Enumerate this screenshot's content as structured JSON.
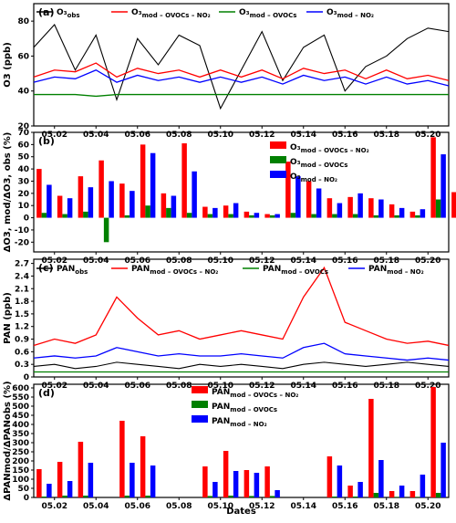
{
  "xaxis": {
    "label": "Dates",
    "start": "05.01",
    "end": "05.21",
    "ticks": [
      "05.02",
      "05.04",
      "05.06",
      "05.08",
      "05.10",
      "05.12",
      "05.14",
      "05.16",
      "05.18",
      "05.20"
    ]
  },
  "colors": {
    "obs": "#000000",
    "mod_ovocs_no2": "#ff0000",
    "mod_ovocs": "#008000",
    "mod_no2": "#0000ff"
  },
  "chart_data": [
    {
      "panel": "(a)",
      "type": "line",
      "ylabel": "O3 (ppb)",
      "ylim": [
        20,
        90
      ],
      "yticks": [
        20,
        40,
        60,
        80
      ],
      "legend": "top",
      "series": [
        {
          "key": "obs",
          "name": "O3, obs",
          "x": [
            "05.01",
            "05.02",
            "05.03",
            "05.04",
            "05.05",
            "05.06",
            "05.07",
            "05.08",
            "05.09",
            "05.10",
            "05.11",
            "05.12",
            "05.13",
            "05.14",
            "05.15",
            "05.16",
            "05.17",
            "05.18",
            "05.19",
            "05.20",
            "05.21"
          ],
          "values": [
            65,
            78,
            52,
            72,
            35,
            70,
            55,
            72,
            66,
            30,
            52,
            74,
            46,
            65,
            72,
            40,
            54,
            60,
            70,
            76,
            74
          ]
        },
        {
          "key": "mod_ovocs_no2",
          "name": "O3, mod – OVOCs – NO2",
          "x": [
            "05.01",
            "05.02",
            "05.03",
            "05.04",
            "05.05",
            "05.06",
            "05.07",
            "05.08",
            "05.09",
            "05.10",
            "05.11",
            "05.12",
            "05.13",
            "05.14",
            "05.15",
            "05.16",
            "05.17",
            "05.18",
            "05.19",
            "05.20",
            "05.21"
          ],
          "values": [
            48,
            52,
            51,
            56,
            48,
            53,
            50,
            52,
            48,
            52,
            48,
            52,
            47,
            53,
            50,
            52,
            47,
            52,
            47,
            49,
            46
          ]
        },
        {
          "key": "mod_ovocs",
          "name": "O3, mod – OVOCs",
          "x": [
            "05.01",
            "05.02",
            "05.03",
            "05.04",
            "05.05",
            "05.06",
            "05.07",
            "05.08",
            "05.09",
            "05.10",
            "05.11",
            "05.12",
            "05.13",
            "05.14",
            "05.15",
            "05.16",
            "05.17",
            "05.18",
            "05.19",
            "05.20",
            "05.21"
          ],
          "values": [
            38,
            38,
            38,
            37,
            38,
            38,
            38,
            38,
            38,
            38,
            38,
            38,
            38,
            38,
            38,
            38,
            38,
            38,
            38,
            38,
            38
          ]
        },
        {
          "key": "mod_no2",
          "name": "O3, mod – NO2",
          "x": [
            "05.01",
            "05.02",
            "05.03",
            "05.04",
            "05.05",
            "05.06",
            "05.07",
            "05.08",
            "05.09",
            "05.10",
            "05.11",
            "05.12",
            "05.13",
            "05.14",
            "05.15",
            "05.16",
            "05.17",
            "05.18",
            "05.19",
            "05.20",
            "05.21"
          ],
          "values": [
            45,
            48,
            47,
            52,
            45,
            49,
            46,
            48,
            45,
            48,
            45,
            48,
            44,
            49,
            46,
            48,
            44,
            48,
            44,
            46,
            43
          ]
        }
      ]
    },
    {
      "panel": "(b)",
      "type": "bar",
      "ylabel": "ΔO3, mod/ΔO3, obs (%)",
      "ylim": [
        -28,
        70
      ],
      "yticks": [
        -20,
        -10,
        0,
        10,
        20,
        30,
        40,
        50,
        60,
        70
      ],
      "legend": "top-right",
      "categories": [
        "05.01",
        "05.02",
        "05.03",
        "05.04",
        "05.05",
        "05.06",
        "05.07",
        "05.08",
        "05.09",
        "05.10",
        "05.11",
        "05.12",
        "05.13",
        "05.14",
        "05.15",
        "05.16",
        "05.17",
        "05.18",
        "05.19",
        "05.20",
        "05.21"
      ],
      "series": [
        {
          "key": "mod_ovocs_no2",
          "name": "O3, mod – OVOCs – NO2",
          "values": [
            40,
            18,
            34,
            47,
            28,
            60,
            20,
            61,
            9,
            10,
            5,
            3,
            46,
            30,
            16,
            17,
            16,
            11,
            5,
            66,
            21
          ]
        },
        {
          "key": "mod_ovocs",
          "name": "O3, mod – OVOCs",
          "values": [
            4,
            3,
            5,
            -20,
            2,
            10,
            8,
            4,
            3,
            3,
            2,
            2,
            4,
            3,
            3,
            3,
            2,
            2,
            2,
            15,
            4
          ]
        },
        {
          "key": "mod_no2",
          "name": "O3, mod – NO2",
          "values": [
            27,
            16,
            25,
            30,
            22,
            53,
            18,
            38,
            8,
            12,
            4,
            3,
            34,
            24,
            12,
            20,
            15,
            8,
            7,
            52,
            16
          ]
        }
      ]
    },
    {
      "panel": "(c)",
      "type": "line",
      "ylabel": "PAN (ppb)",
      "ylim": [
        0,
        2.8
      ],
      "yticks": [
        0,
        0.3,
        0.6,
        0.9,
        1.2,
        1.5,
        1.8,
        2.1,
        2.4,
        2.7
      ],
      "legend": "top",
      "series": [
        {
          "key": "obs",
          "name": "PANobs",
          "x": [
            "05.01",
            "05.02",
            "05.03",
            "05.04",
            "05.05",
            "05.06",
            "05.07",
            "05.08",
            "05.09",
            "05.10",
            "05.11",
            "05.12",
            "05.13",
            "05.14",
            "05.15",
            "05.16",
            "05.17",
            "05.18",
            "05.19",
            "05.20",
            "05.21"
          ],
          "values": [
            0.25,
            0.3,
            0.2,
            0.25,
            0.35,
            0.3,
            0.25,
            0.2,
            0.3,
            0.25,
            0.3,
            0.25,
            0.2,
            0.3,
            0.35,
            0.3,
            0.25,
            0.3,
            0.35,
            0.3,
            0.25
          ]
        },
        {
          "key": "mod_ovocs_no2",
          "name": "PANmod – OVOCs – NO2",
          "x": [
            "05.01",
            "05.02",
            "05.03",
            "05.04",
            "05.05",
            "05.06",
            "05.07",
            "05.08",
            "05.09",
            "05.10",
            "05.11",
            "05.12",
            "05.13",
            "05.14",
            "05.15",
            "05.16",
            "05.17",
            "05.18",
            "05.19",
            "05.20",
            "05.21"
          ],
          "values": [
            0.75,
            0.9,
            0.8,
            1.0,
            1.9,
            1.4,
            1.0,
            1.1,
            0.9,
            1.0,
            1.1,
            1.0,
            0.9,
            1.9,
            2.6,
            1.3,
            1.1,
            0.9,
            0.8,
            0.85,
            0.75
          ]
        },
        {
          "key": "mod_ovocs",
          "name": "PANmod – OVOCs",
          "x": [
            "05.01",
            "05.02",
            "05.03",
            "05.04",
            "05.05",
            "05.06",
            "05.07",
            "05.08",
            "05.09",
            "05.10",
            "05.11",
            "05.12",
            "05.13",
            "05.14",
            "05.15",
            "05.16",
            "05.17",
            "05.18",
            "05.19",
            "05.20",
            "05.21"
          ],
          "values": [
            0.12,
            0.12,
            0.12,
            0.12,
            0.12,
            0.12,
            0.12,
            0.12,
            0.12,
            0.12,
            0.12,
            0.12,
            0.12,
            0.12,
            0.12,
            0.12,
            0.12,
            0.12,
            0.12,
            0.12,
            0.12
          ]
        },
        {
          "key": "mod_no2",
          "name": "PANmod – NO2",
          "x": [
            "05.01",
            "05.02",
            "05.03",
            "05.04",
            "05.05",
            "05.06",
            "05.07",
            "05.08",
            "05.09",
            "05.10",
            "05.11",
            "05.12",
            "05.13",
            "05.14",
            "05.15",
            "05.16",
            "05.17",
            "05.18",
            "05.19",
            "05.20",
            "05.21"
          ],
          "values": [
            0.45,
            0.5,
            0.45,
            0.5,
            0.7,
            0.6,
            0.5,
            0.55,
            0.5,
            0.5,
            0.55,
            0.5,
            0.45,
            0.7,
            0.8,
            0.55,
            0.5,
            0.45,
            0.4,
            0.45,
            0.4
          ]
        }
      ]
    },
    {
      "panel": "(d)",
      "type": "bar",
      "ylabel": "ΔPANmod/ΔPANobs (%)",
      "ylim": [
        0,
        620
      ],
      "yticks": [
        0,
        50,
        100,
        150,
        200,
        250,
        300,
        350,
        400,
        450,
        500,
        550,
        600
      ],
      "legend": "top",
      "categories": [
        "05.01",
        "05.02",
        "05.03",
        "05.04",
        "05.05",
        "05.06",
        "05.07",
        "05.08",
        "05.09",
        "05.10",
        "05.11",
        "05.12",
        "05.13",
        "05.14",
        "05.15",
        "05.16",
        "05.17",
        "05.18",
        "05.19",
        "05.20",
        "05.21"
      ],
      "series": [
        {
          "key": "mod_ovocs_no2",
          "name": "PANmod – OVOCs – NO2",
          "values": [
            155,
            195,
            305,
            0,
            420,
            335,
            0,
            0,
            170,
            255,
            150,
            170,
            0,
            0,
            225,
            65,
            540,
            35,
            35,
            605,
            0
          ]
        },
        {
          "key": "mod_ovocs",
          "name": "PANmod – OVOCs",
          "values": [
            5,
            10,
            10,
            0,
            10,
            10,
            0,
            0,
            8,
            10,
            8,
            8,
            0,
            0,
            5,
            5,
            25,
            3,
            3,
            25,
            0
          ]
        },
        {
          "key": "mod_no2",
          "name": "PANmod – NO2",
          "values": [
            75,
            90,
            190,
            0,
            190,
            175,
            0,
            0,
            85,
            145,
            135,
            40,
            0,
            0,
            175,
            85,
            205,
            65,
            125,
            300,
            0
          ]
        }
      ]
    }
  ]
}
